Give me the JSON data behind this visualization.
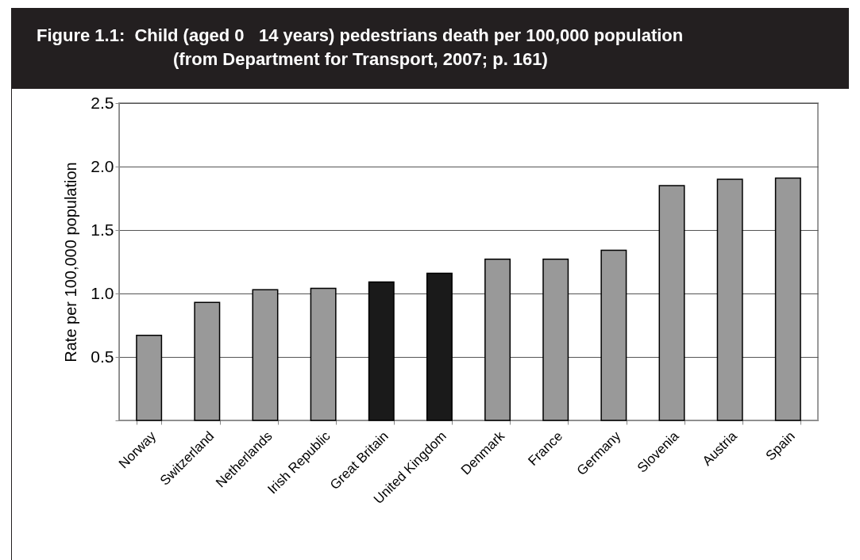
{
  "chart_data": {
    "type": "bar",
    "title": "Figure 1.1:  Child (aged 0   14 years) pedestrians death per 100,000 population",
    "subtitle": "(from Department for Transport, 2007; p. 161)",
    "ylabel": "Rate per 100,000 population",
    "categories": [
      "Norway",
      "Switzerland",
      "Netherlands",
      "Irish Republic",
      "Great Britain",
      "United Kingdom",
      "Denmark",
      "France",
      "Germany",
      "Slovenia",
      "Austria",
      "Spain"
    ],
    "values": [
      0.67,
      0.93,
      1.03,
      1.04,
      1.09,
      1.16,
      1.27,
      1.27,
      1.34,
      1.85,
      1.9,
      1.91
    ],
    "colors": [
      "#999999",
      "#999999",
      "#999999",
      "#999999",
      "#1a1a1a",
      "#1a1a1a",
      "#999999",
      "#999999",
      "#999999",
      "#999999",
      "#999999",
      "#999999"
    ],
    "ylim": [
      0,
      2.5
    ],
    "yticks": [
      {
        "value": 0,
        "label": null
      },
      0.5,
      {
        "value": 1,
        "label": "1.0"
      },
      1.5,
      {
        "value": 2,
        "label": "2.0"
      },
      2.5
    ],
    "grid": "y"
  }
}
